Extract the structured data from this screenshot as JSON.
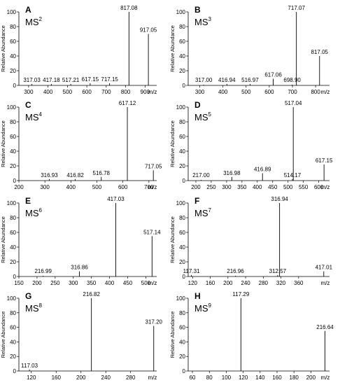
{
  "chart_data": [
    {
      "type": "bar",
      "panel": "A",
      "ms_base": "MS",
      "ms_order": "2",
      "ylabel": "Relative Abundance",
      "xlabel": "m/z",
      "xlim": [
        250,
        960
      ],
      "ylim": [
        0,
        100
      ],
      "xticks": [
        "300",
        "400",
        "500",
        "600",
        "700",
        "800",
        "900"
      ],
      "yticks": [
        "0",
        "20",
        "40",
        "60",
        "80",
        "100"
      ],
      "peaks": [
        {
          "label": "317.03",
          "x": 317.03,
          "y": 2
        },
        {
          "label": "417.18",
          "x": 417.18,
          "y": 2
        },
        {
          "label": "517.21",
          "x": 517.21,
          "y": 2
        },
        {
          "label": "617.15",
          "x": 617.15,
          "y": 3
        },
        {
          "label": "717.15",
          "x": 717.15,
          "y": 3
        },
        {
          "label": "817.08",
          "x": 817.08,
          "y": 100
        },
        {
          "label": "917.05",
          "x": 917.05,
          "y": 70
        }
      ]
    },
    {
      "type": "bar",
      "panel": "B",
      "ms_base": "MS",
      "ms_order": "3",
      "ylabel": "Relative Abundance",
      "xlabel": "m/z",
      "xlim": [
        250,
        860
      ],
      "ylim": [
        0,
        100
      ],
      "xticks": [
        "300",
        "400",
        "500",
        "600",
        "700",
        "800"
      ],
      "yticks": [
        "0",
        "20",
        "40",
        "60",
        "80",
        "100"
      ],
      "peaks": [
        {
          "label": "317.00",
          "x": 317.0,
          "y": 1
        },
        {
          "label": "416.94",
          "x": 416.94,
          "y": 2
        },
        {
          "label": "516.97",
          "x": 516.97,
          "y": 2
        },
        {
          "label": "617.06",
          "x": 617.06,
          "y": 9
        },
        {
          "label": "698.90",
          "x": 698.9,
          "y": 1
        },
        {
          "label": "717.07",
          "x": 717.07,
          "y": 100
        },
        {
          "label": "817.05",
          "x": 817.05,
          "y": 40
        }
      ]
    },
    {
      "type": "bar",
      "panel": "C",
      "ms_base": "MS",
      "ms_order": "4",
      "ylabel": "Relative Abundance",
      "xlabel": "m/z",
      "xlim": [
        200,
        730
      ],
      "ylim": [
        0,
        100
      ],
      "xticks": [
        "200",
        "300",
        "400",
        "500",
        "600",
        "700"
      ],
      "yticks": [
        "0",
        "20",
        "40",
        "60",
        "80",
        "100"
      ],
      "peaks": [
        {
          "label": "316.93",
          "x": 316.93,
          "y": 2
        },
        {
          "label": "416.82",
          "x": 416.82,
          "y": 2
        },
        {
          "label": "516.78",
          "x": 516.78,
          "y": 5
        },
        {
          "label": "617.12",
          "x": 617.12,
          "y": 100
        },
        {
          "label": "717.05",
          "x": 717.05,
          "y": 14
        }
      ]
    },
    {
      "type": "bar",
      "panel": "D",
      "ms_base": "MS",
      "ms_order": "5",
      "ylabel": "Relative Abundance",
      "xlabel": "m/z",
      "xlim": [
        175,
        635
      ],
      "ylim": [
        0,
        100
      ],
      "xticks": [
        "200",
        "250",
        "300",
        "350",
        "400",
        "450",
        "500",
        "550",
        "600"
      ],
      "yticks": [
        "0",
        "20",
        "40",
        "60",
        "80",
        "100"
      ],
      "peaks": [
        {
          "label": "217.00",
          "x": 217.0,
          "y": 1
        },
        {
          "label": "316.98",
          "x": 316.98,
          "y": 5
        },
        {
          "label": "416.89",
          "x": 416.89,
          "y": 10
        },
        {
          "label": "514.17",
          "x": 514.17,
          "y": 2
        },
        {
          "label": "517.04",
          "x": 517.04,
          "y": 100
        },
        {
          "label": "617.15",
          "x": 617.15,
          "y": 22
        }
      ]
    },
    {
      "type": "bar",
      "panel": "E",
      "ms_base": "MS",
      "ms_order": "6",
      "ylabel": "Relative Abundance",
      "xlabel": "m/z",
      "xlim": [
        150,
        530
      ],
      "ylim": [
        0,
        100
      ],
      "xticks": [
        "150",
        "200",
        "250",
        "300",
        "350",
        "400",
        "450",
        "500"
      ],
      "yticks": [
        "0",
        "20",
        "40",
        "60",
        "80",
        "100"
      ],
      "peaks": [
        {
          "label": "216.99",
          "x": 216.99,
          "y": 1
        },
        {
          "label": "316.86",
          "x": 316.86,
          "y": 7
        },
        {
          "label": "417.03",
          "x": 417.03,
          "y": 100
        },
        {
          "label": "517.14",
          "x": 517.14,
          "y": 55
        }
      ]
    },
    {
      "type": "bar",
      "panel": "F",
      "ms_base": "MS",
      "ms_order": "7",
      "ylabel": "Relative Abundance",
      "xlabel": "m/z",
      "xlim": [
        110,
        430
      ],
      "ylim": [
        0,
        100
      ],
      "xticks": [
        "120",
        "160",
        "200",
        "240",
        "280",
        "320",
        "360"
      ],
      "yticks": [
        "0",
        "20",
        "40",
        "60",
        "80",
        "100"
      ],
      "peaks": [
        {
          "label": "117.31",
          "x": 117.31,
          "y": 2
        },
        {
          "label": "216.96",
          "x": 216.96,
          "y": 1
        },
        {
          "label": "312.57",
          "x": 312.57,
          "y": 2
        },
        {
          "label": "316.94",
          "x": 316.94,
          "y": 100
        },
        {
          "label": "417.01",
          "x": 417.01,
          "y": 7
        }
      ]
    },
    {
      "type": "bar",
      "panel": "G",
      "ms_base": "MS",
      "ms_order": "8",
      "ylabel": "Relative Abundance",
      "xlabel": "m/z",
      "xlim": [
        100,
        322
      ],
      "ylim": [
        0,
        100
      ],
      "xticks": [
        "120",
        "160",
        "200",
        "240",
        "280"
      ],
      "yticks": [
        "0",
        "20",
        "40",
        "60",
        "80",
        "100"
      ],
      "peaks": [
        {
          "label": "117.03",
          "x": 117.03,
          "y": 2
        },
        {
          "label": "216.82",
          "x": 216.82,
          "y": 100
        },
        {
          "label": "317.20",
          "x": 317.2,
          "y": 62
        }
      ]
    },
    {
      "type": "bar",
      "panel": "H",
      "ms_base": "MS",
      "ms_order": "9",
      "ylabel": "Relative Abundance",
      "xlabel": "m/z",
      "xlim": [
        55,
        222
      ],
      "ylim": [
        0,
        100
      ],
      "xticks": [
        "60",
        "80",
        "100",
        "120",
        "140",
        "160",
        "180",
        "200"
      ],
      "yticks": [
        "0",
        "20",
        "40",
        "60",
        "80",
        "100"
      ],
      "peaks": [
        {
          "label": "117.29",
          "x": 117.29,
          "y": 100
        },
        {
          "label": "216.64",
          "x": 216.64,
          "y": 55
        }
      ]
    }
  ]
}
